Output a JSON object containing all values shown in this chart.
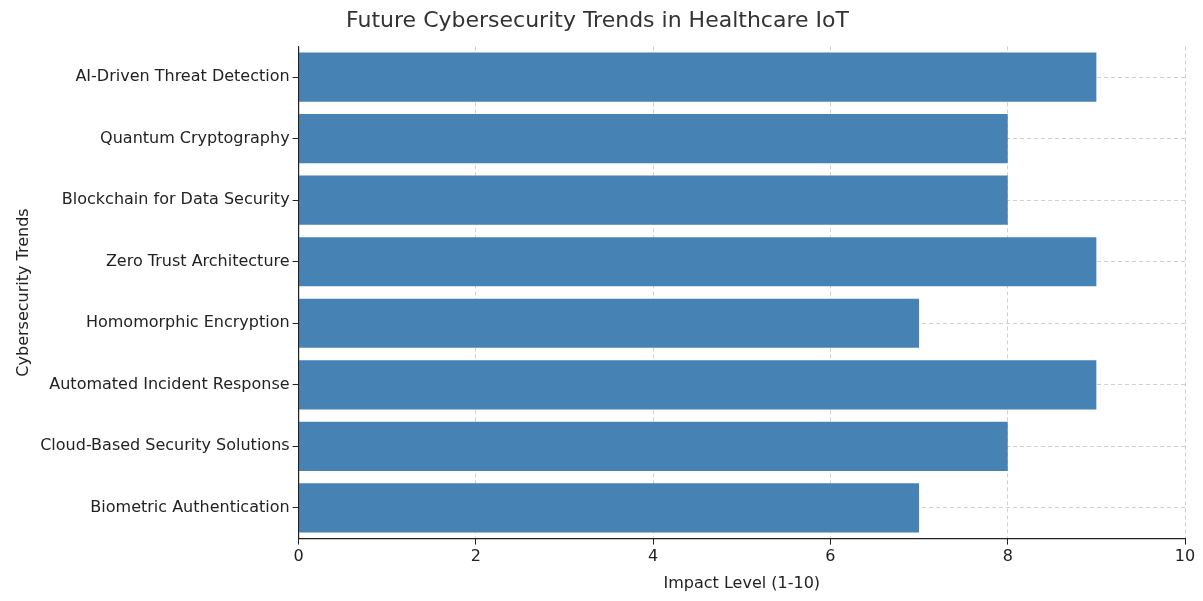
{
  "chart_data": {
    "type": "bar",
    "orientation": "horizontal",
    "title": "Future Cybersecurity Trends in Healthcare IoT",
    "xlabel": "Impact Level (1-10)",
    "ylabel": "Cybersecurity Trends",
    "categories": [
      "AI-Driven Threat Detection",
      "Quantum Cryptography",
      "Blockchain for Data Security",
      "Zero Trust Architecture",
      "Homomorphic Encryption",
      "Automated Incident Response",
      "Cloud-Based Security Solutions",
      "Biometric Authentication"
    ],
    "values": [
      9,
      8,
      8,
      9,
      7,
      9,
      8,
      7
    ],
    "color": "#4682b4",
    "xlim": [
      0,
      10
    ],
    "xticks": [
      0,
      2,
      4,
      6,
      8,
      10
    ],
    "grid": true
  }
}
